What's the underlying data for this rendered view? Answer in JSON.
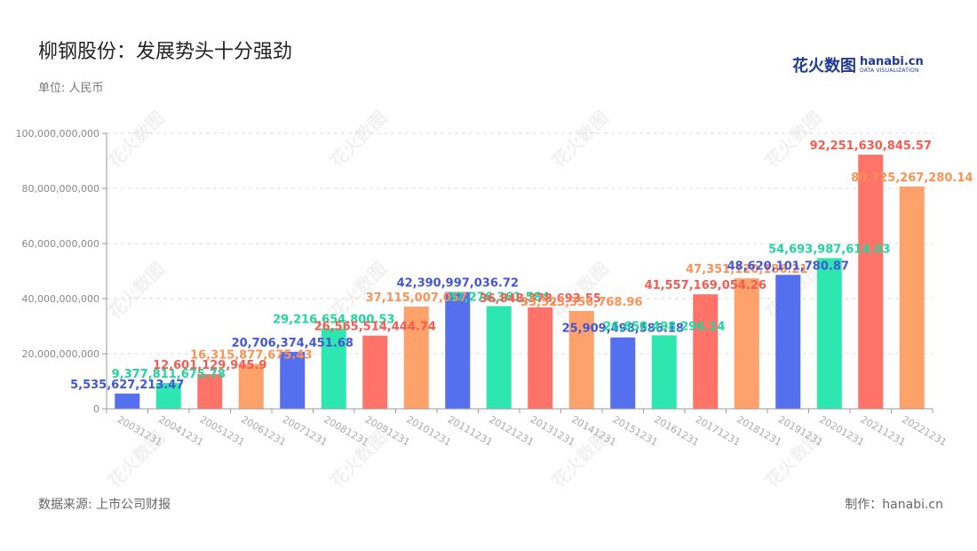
{
  "header": {
    "title": "柳钢股份：发展势头十分强劲",
    "unit": "单位: 人民币"
  },
  "logo": {
    "cn": "花火数图",
    "en": "hanabi.cn",
    "sub": "DATA VISUALIZATION"
  },
  "footer": {
    "source": "数据来源: 上市公司财报",
    "maker": "制作：hanabi.cn"
  },
  "watermark": "花火数图",
  "chart_data": {
    "type": "bar",
    "categories": [
      "20031231",
      "20041231",
      "20051231",
      "20061231",
      "20071231",
      "20081231",
      "20091231",
      "20101231",
      "20111231",
      "20121231",
      "20131231",
      "20141231",
      "20151231",
      "20161231",
      "20171231",
      "20181231",
      "20191231",
      "20201231",
      "20211231",
      "20221231"
    ],
    "values": [
      5535627213.47,
      9377811675.78,
      12601129945.9,
      16315877675.43,
      20706374451.68,
      29216654800.53,
      26565514444.74,
      37115007057,
      42390997036.72,
      37276361584,
      36848378693.55,
      35523356768.96,
      25909498586.18,
      26658498296.14,
      41557169054.26,
      47351120186.21,
      48620101780.87,
      54693987614.03,
      92251630845.57,
      80725267280.14
    ],
    "value_labels": [
      "5,535,627,213.47",
      "9,377,811,675.78",
      "12,601,129,945.9",
      "16,315,877,675.43",
      "20,706,374,451.68",
      "29,216,654,800.53",
      "26,565,514,444.74",
      "37,115,007,057",
      "42,390,997,036.72",
      "37,276,361,584",
      "36,848,378,693.55",
      "35,523,356,768.96",
      "25,909,498,586.18",
      "26,658,498,296.14",
      "41,557,169,054.26",
      "47,351,120,186.21",
      "48,620,101,780.87",
      "54,693,987,614.03",
      "92,251,630,845.57",
      "80,725,267,280.14"
    ],
    "colors": [
      "#5470ee",
      "#2ee6b0",
      "#ff7369",
      "#ffa16b"
    ],
    "label_colors": [
      "#4256d6",
      "#1fd69c",
      "#f75a50",
      "#ff9155"
    ],
    "yticks": [
      0,
      20000000000,
      40000000000,
      60000000000,
      80000000000,
      100000000000
    ],
    "ytick_labels": [
      "0",
      "20,000,000,000",
      "40,000,000,000",
      "60,000,000,000",
      "80,000,000,000",
      "100,000,000,000"
    ],
    "ylim": [
      0,
      100000000000
    ],
    "grid": true,
    "legend": "none",
    "title": "柳钢股份：发展势头十分强劲",
    "xlabel": "",
    "ylabel": ""
  }
}
